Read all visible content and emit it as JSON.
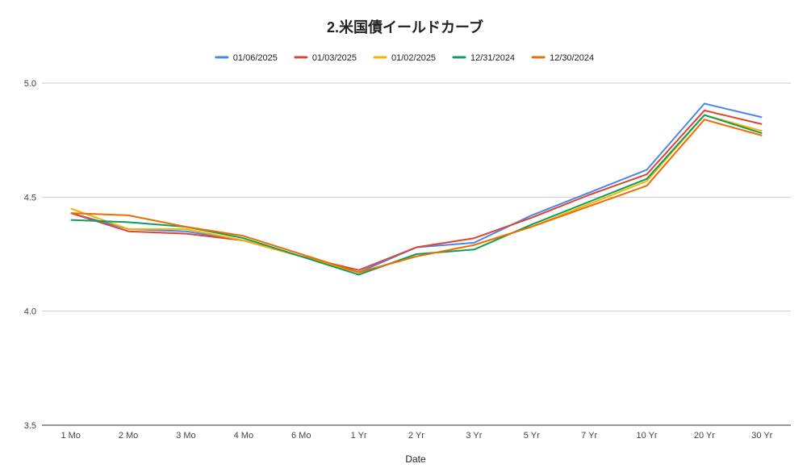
{
  "chart_data": {
    "type": "line",
    "title": "2.米国債イールドカーブ",
    "xlabel": "Date",
    "ylabel": "",
    "ylim": [
      3.5,
      5.0
    ],
    "yticks": [
      3.5,
      4.0,
      4.5,
      5.0
    ],
    "ytick_labels": [
      "3.5",
      "4.0",
      "4.5",
      "5.0"
    ],
    "grid": true,
    "legend_position": "top",
    "categories": [
      "1 Mo",
      "2 Mo",
      "3 Mo",
      "4 Mo",
      "6 Mo",
      "1 Yr",
      "2 Yr",
      "3 Yr",
      "5 Yr",
      "7 Yr",
      "10 Yr",
      "20 Yr",
      "30 Yr"
    ],
    "series": [
      {
        "name": "01/06/2025",
        "color": "#4a86e8",
        "values": [
          4.43,
          4.36,
          4.35,
          4.31,
          4.24,
          4.17,
          4.28,
          4.3,
          4.42,
          4.52,
          4.62,
          4.91,
          4.85
        ]
      },
      {
        "name": "01/03/2025",
        "color": "#db4437",
        "values": [
          4.43,
          4.35,
          4.34,
          4.31,
          4.24,
          4.18,
          4.28,
          4.32,
          4.41,
          4.51,
          4.6,
          4.88,
          4.82
        ]
      },
      {
        "name": "01/02/2025",
        "color": "#f4b400",
        "values": [
          4.45,
          4.36,
          4.36,
          4.31,
          4.24,
          4.17,
          4.24,
          4.29,
          4.37,
          4.47,
          4.57,
          4.86,
          4.79
        ]
      },
      {
        "name": "12/31/2024",
        "color": "#0f9d58",
        "values": [
          4.4,
          4.39,
          4.37,
          4.32,
          4.24,
          4.16,
          4.25,
          4.27,
          4.38,
          4.48,
          4.58,
          4.86,
          4.78
        ]
      },
      {
        "name": "12/30/2024",
        "color": "#ef6c00",
        "values": [
          4.43,
          4.42,
          4.37,
          4.33,
          4.25,
          4.17,
          4.24,
          4.29,
          4.37,
          4.46,
          4.55,
          4.84,
          4.77
        ]
      }
    ]
  }
}
